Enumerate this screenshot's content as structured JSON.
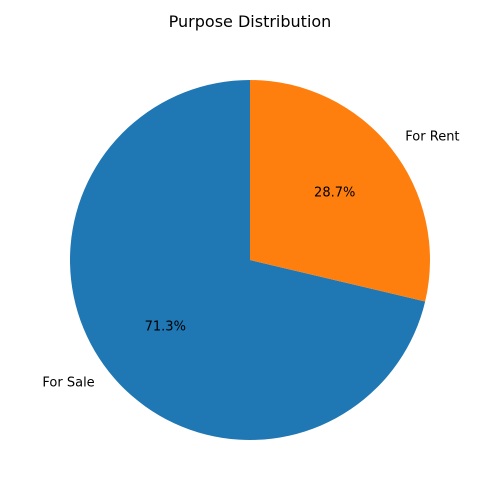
{
  "chart_data": {
    "type": "pie",
    "title": "Purpose Distribution",
    "slices": [
      {
        "label": "For Sale",
        "value": 71.3,
        "pct_label": "71.3%",
        "color": "#1f77b4"
      },
      {
        "label": "For Rent",
        "value": 28.7,
        "pct_label": "28.7%",
        "color": "#ff7f0e"
      }
    ],
    "start_angle_deg": 90,
    "direction": "counterclockwise",
    "legend": "none"
  }
}
